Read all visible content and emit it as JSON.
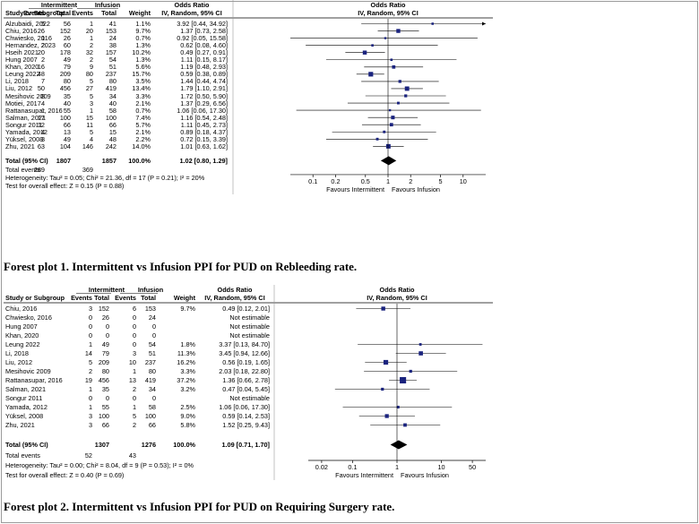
{
  "captions": {
    "plot1": "Forest plot 1. Intermittent vs Infusion PPI for PUD on Rebleeding rate.",
    "plot2": "Forest plot 2. Intermittent vs Infusion PPI for PUD on Requiring Surgery rate."
  },
  "colors": {
    "square": "#1a237e",
    "diamond": "#000000",
    "line": "#000000",
    "grid": "#9a9a9a"
  },
  "chart_data": [
    {
      "type": "forest",
      "header": {
        "study": "Study or Subgroup",
        "group1": "Intermittent",
        "group2": "Infusion",
        "events": "Events",
        "total": "Total",
        "weight": "Weight",
        "or_label": "Odds Ratio",
        "or_method": "IV, Random, 95% CI"
      },
      "x_scale": "log",
      "xlim": [
        0.05,
        20
      ],
      "ticks": [
        0.1,
        0.2,
        0.5,
        1,
        2,
        5,
        10
      ],
      "tick_labels": [
        "0.1",
        "0.2",
        "0.5",
        "1",
        "2",
        "5",
        "10"
      ],
      "favours_left": "Favours Intermittent",
      "favours_right": "Favours Infusion",
      "studies": [
        {
          "study": "Alzubaidi, 2022",
          "e1": "5",
          "n1": "56",
          "e2": "1",
          "n2": "41",
          "weight": "1.1%",
          "ci_text": "3.92 [0.44, 34.92]",
          "or": 3.92,
          "lo": 0.44,
          "hi": 34.92
        },
        {
          "study": "Chiu, 2016",
          "e1": "26",
          "n1": "152",
          "e2": "20",
          "n2": "153",
          "weight": "9.7%",
          "ci_text": "1.37 [0.73, 2.58]",
          "or": 1.37,
          "lo": 0.73,
          "hi": 2.58
        },
        {
          "study": "Chwiesko, 2016",
          "e1": "1",
          "n1": "26",
          "e2": "1",
          "n2": "24",
          "weight": "0.7%",
          "ci_text": "0.92 [0.05, 15.58]",
          "or": 0.92,
          "lo": 0.05,
          "hi": 15.58
        },
        {
          "study": "Hernandez, 2023",
          "e1": "2",
          "n1": "60",
          "e2": "2",
          "n2": "38",
          "weight": "1.3%",
          "ci_text": "0.62 [0.08, 4.60]",
          "or": 0.62,
          "lo": 0.08,
          "hi": 4.6
        },
        {
          "study": "Hseih 2021",
          "e1": "20",
          "n1": "178",
          "e2": "32",
          "n2": "157",
          "weight": "10.2%",
          "ci_text": "0.49 [0.27, 0.91]",
          "or": 0.49,
          "lo": 0.27,
          "hi": 0.91
        },
        {
          "study": "Hung 2007",
          "e1": "2",
          "n1": "49",
          "e2": "2",
          "n2": "54",
          "weight": "1.3%",
          "ci_text": "1.11 [0.15, 8.17]",
          "or": 1.11,
          "lo": 0.15,
          "hi": 8.17
        },
        {
          "study": "Khan, 2020",
          "e1": "16",
          "n1": "79",
          "e2": "9",
          "n2": "51",
          "weight": "5.6%",
          "ci_text": "1.19 [0.48, 2.93]",
          "or": 1.19,
          "lo": 0.48,
          "hi": 2.93
        },
        {
          "study": "Leung 2022",
          "e1": "48",
          "n1": "209",
          "e2": "80",
          "n2": "237",
          "weight": "15.7%",
          "ci_text": "0.59 [0.38, 0.89]",
          "or": 0.59,
          "lo": 0.38,
          "hi": 0.89
        },
        {
          "study": "Li, 2018",
          "e1": "7",
          "n1": "80",
          "e2": "5",
          "n2": "80",
          "weight": "3.5%",
          "ci_text": "1.44 [0.44, 4.74]",
          "or": 1.44,
          "lo": 0.44,
          "hi": 4.74
        },
        {
          "study": "Liu, 2012",
          "e1": "50",
          "n1": "456",
          "e2": "27",
          "n2": "419",
          "weight": "13.4%",
          "ci_text": "1.79 [1.10, 2.91]",
          "or": 1.79,
          "lo": 1.1,
          "hi": 2.91
        },
        {
          "study": "Mesihovic 2009",
          "e1": "8",
          "n1": "35",
          "e2": "5",
          "n2": "34",
          "weight": "3.3%",
          "ci_text": "1.72 [0.50, 5.90]",
          "or": 1.72,
          "lo": 0.5,
          "hi": 5.9
        },
        {
          "study": "Motiei, 2017",
          "e1": "4",
          "n1": "40",
          "e2": "3",
          "n2": "40",
          "weight": "2.1%",
          "ci_text": "1.37 [0.29, 6.56]",
          "or": 1.37,
          "lo": 0.29,
          "hi": 6.56
        },
        {
          "study": "Rattanasupar, 2016",
          "e1": "1",
          "n1": "55",
          "e2": "1",
          "n2": "58",
          "weight": "0.7%",
          "ci_text": "1.06 [0.06, 17.30]",
          "or": 1.06,
          "lo": 0.06,
          "hi": 17.3
        },
        {
          "study": "Salman, 2021",
          "e1": "17",
          "n1": "100",
          "e2": "15",
          "n2": "100",
          "weight": "7.4%",
          "ci_text": "1.16 [0.54, 2.48]",
          "or": 1.16,
          "lo": 0.54,
          "hi": 2.48
        },
        {
          "study": "Songur 2011",
          "e1": "12",
          "n1": "66",
          "e2": "11",
          "n2": "66",
          "weight": "5.7%",
          "ci_text": "1.11 [0.45, 2.73]",
          "or": 1.11,
          "lo": 0.45,
          "hi": 2.73
        },
        {
          "study": "Yamada, 2012",
          "e1": "4",
          "n1": "13",
          "e2": "5",
          "n2": "15",
          "weight": "2.1%",
          "ci_text": "0.89 [0.18, 4.37]",
          "or": 0.89,
          "lo": 0.18,
          "hi": 4.37
        },
        {
          "study": "Yüksel, 2008",
          "e1": "3",
          "n1": "49",
          "e2": "4",
          "n2": "48",
          "weight": "2.2%",
          "ci_text": "0.72 [0.15, 3.39]",
          "or": 0.72,
          "lo": 0.15,
          "hi": 3.39
        },
        {
          "study": "Zhu, 2021",
          "e1": "63",
          "n1": "104",
          "e2": "146",
          "n2": "242",
          "weight": "14.0%",
          "ci_text": "1.01 [0.63, 1.62]",
          "or": 1.01,
          "lo": 0.63,
          "hi": 1.62
        }
      ],
      "total": {
        "label": "Total (95% CI)",
        "n1": "1807",
        "n2": "1857",
        "weight": "100.0%",
        "ci_text": "1.02 [0.80, 1.29]",
        "or": 1.02,
        "lo": 0.8,
        "hi": 1.29
      },
      "total_events": {
        "label": "Total events",
        "e1": "289",
        "e2": "369"
      },
      "heterogeneity": "Heterogeneity: Tau² = 0.05; Chi² = 21.36, df = 17 (P = 0.21); I² = 20%",
      "overall_effect": "Test for overall effect: Z = 0.15 (P = 0.88)"
    },
    {
      "type": "forest",
      "header": {
        "study": "Study or Subgroup",
        "group1": "Intermittent",
        "group2": "Infusion",
        "events": "Events",
        "total": "Total",
        "weight": "Weight",
        "or_label": "Odds Ratio",
        "or_method": "IV, Random, 95% CI"
      },
      "x_scale": "log",
      "xlim": [
        0.01,
        100
      ],
      "ticks": [
        0.02,
        0.1,
        1,
        10,
        50
      ],
      "tick_labels": [
        "0.02",
        "0.1",
        "1",
        "10",
        "50"
      ],
      "favours_left": "Favours Intermittent",
      "favours_right": "Favours Infusion",
      "studies": [
        {
          "study": "Chiu, 2016",
          "e1": "3",
          "n1": "152",
          "e2": "6",
          "n2": "153",
          "weight": "9.7%",
          "ci_text": "0.49 [0.12, 2.01]",
          "or": 0.49,
          "lo": 0.12,
          "hi": 2.01
        },
        {
          "study": "Chwiesko, 2016",
          "e1": "0",
          "n1": "26",
          "e2": "0",
          "n2": "24",
          "weight": "",
          "ci_text": "Not estimable",
          "or": null,
          "lo": null,
          "hi": null
        },
        {
          "study": "Hung 2007",
          "e1": "0",
          "n1": "0",
          "e2": "0",
          "n2": "0",
          "weight": "",
          "ci_text": "Not estimable",
          "or": null,
          "lo": null,
          "hi": null
        },
        {
          "study": "Khan, 2020",
          "e1": "0",
          "n1": "0",
          "e2": "0",
          "n2": "0",
          "weight": "",
          "ci_text": "Not estimable",
          "or": null,
          "lo": null,
          "hi": null
        },
        {
          "study": "Leung 2022",
          "e1": "1",
          "n1": "49",
          "e2": "0",
          "n2": "54",
          "weight": "1.8%",
          "ci_text": "3.37 [0.13, 84.70]",
          "or": 3.37,
          "lo": 0.13,
          "hi": 84.7
        },
        {
          "study": "Li, 2018",
          "e1": "14",
          "n1": "79",
          "e2": "3",
          "n2": "51",
          "weight": "11.3%",
          "ci_text": "3.45 [0.94, 12.66]",
          "or": 3.45,
          "lo": 0.94,
          "hi": 12.66
        },
        {
          "study": "Liu, 2012",
          "e1": "5",
          "n1": "209",
          "e2": "10",
          "n2": "237",
          "weight": "16.2%",
          "ci_text": "0.56 [0.19, 1.65]",
          "or": 0.56,
          "lo": 0.19,
          "hi": 1.65
        },
        {
          "study": "Mesihovic 2009",
          "e1": "2",
          "n1": "80",
          "e2": "1",
          "n2": "80",
          "weight": "3.3%",
          "ci_text": "2.03 [0.18, 22.80]",
          "or": 2.03,
          "lo": 0.18,
          "hi": 22.8
        },
        {
          "study": "Rattanasupar, 2016",
          "e1": "19",
          "n1": "456",
          "e2": "13",
          "n2": "419",
          "weight": "37.2%",
          "ci_text": "1.36 [0.66, 2.78]",
          "or": 1.36,
          "lo": 0.66,
          "hi": 2.78
        },
        {
          "study": "Salman, 2021",
          "e1": "1",
          "n1": "35",
          "e2": "2",
          "n2": "34",
          "weight": "3.2%",
          "ci_text": "0.47 [0.04, 5.45]",
          "or": 0.47,
          "lo": 0.04,
          "hi": 5.45
        },
        {
          "study": "Songur 2011",
          "e1": "0",
          "n1": "0",
          "e2": "0",
          "n2": "0",
          "weight": "",
          "ci_text": "Not estimable",
          "or": null,
          "lo": null,
          "hi": null
        },
        {
          "study": "Yamada, 2012",
          "e1": "1",
          "n1": "55",
          "e2": "1",
          "n2": "58",
          "weight": "2.5%",
          "ci_text": "1.06 [0.06, 17.30]",
          "or": 1.06,
          "lo": 0.06,
          "hi": 17.3
        },
        {
          "study": "Yüksel, 2008",
          "e1": "3",
          "n1": "100",
          "e2": "5",
          "n2": "100",
          "weight": "9.0%",
          "ci_text": "0.59 [0.14, 2.53]",
          "or": 0.59,
          "lo": 0.14,
          "hi": 2.53
        },
        {
          "study": "Zhu, 2021",
          "e1": "3",
          "n1": "66",
          "e2": "2",
          "n2": "66",
          "weight": "5.8%",
          "ci_text": "1.52 [0.25, 9.43]",
          "or": 1.52,
          "lo": 0.25,
          "hi": 9.43
        }
      ],
      "total": {
        "label": "Total (95% CI)",
        "n1": "1307",
        "n2": "1276",
        "weight": "100.0%",
        "ci_text": "1.09 [0.71, 1.70]",
        "or": 1.09,
        "lo": 0.71,
        "hi": 1.7
      },
      "total_events": {
        "label": "Total events",
        "e1": "52",
        "e2": "43"
      },
      "heterogeneity": "Heterogeneity: Tau² = 0.00; Chi² = 8.04, df = 9 (P = 0.53); I² = 0%",
      "overall_effect": "Test for overall effect: Z = 0.40 (P = 0.69)"
    }
  ]
}
